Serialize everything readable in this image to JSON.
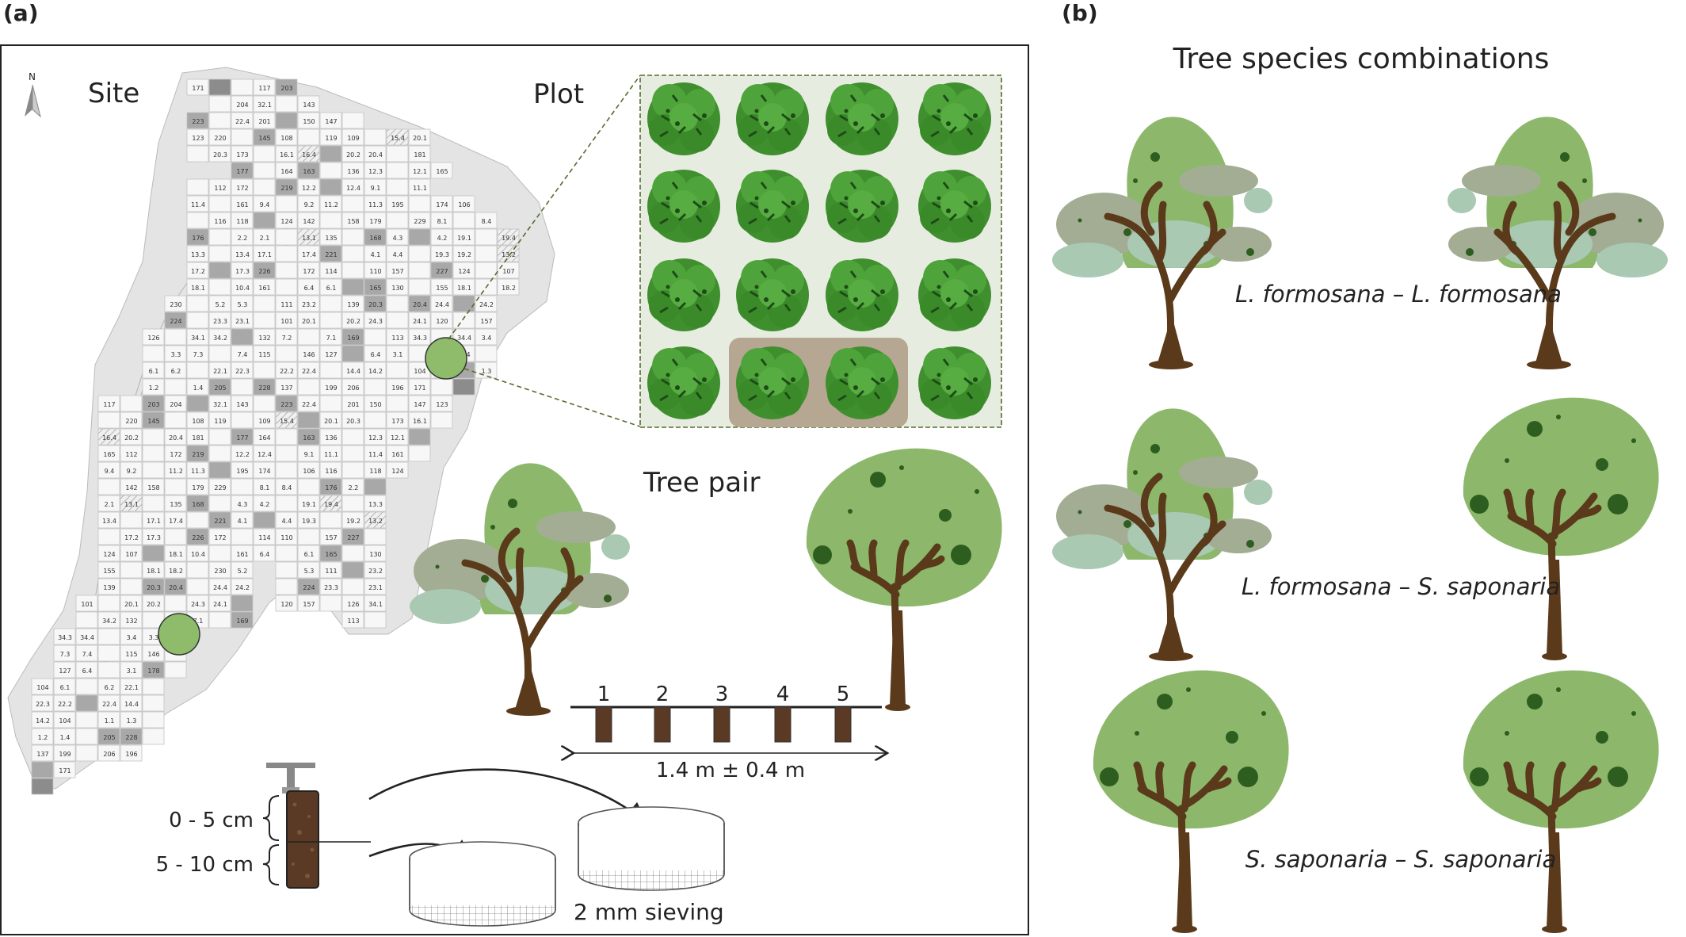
{
  "panel_a": {
    "label": "(a)",
    "north_label": "N",
    "site_label": "Site",
    "plot_label": "Plot",
    "tree_pair_label": "Tree pair",
    "sample_points": [
      "1",
      "2",
      "3",
      "4",
      "5"
    ],
    "distance_label": "1.4 m ± 0.4 m",
    "depth_top": "0 - 5 cm",
    "depth_bottom": "5 - 10 cm",
    "sieve_label": "2 mm sieving",
    "colors": {
      "site_bg": "#e2e2e2",
      "tree_canopy": "#3f8f2f",
      "plot_bg": "#e6ecdf",
      "highlight": "#b5a792",
      "marker": "#8fbc6b"
    },
    "map_cells": [
      {
        "t": "171",
        "s": "l"
      },
      {
        "t": "",
        "s": "d"
      },
      {
        "t": "117",
        "s": "l"
      },
      {
        "t": "203",
        "s": "m"
      },
      {
        "t": "204",
        "s": "l"
      },
      {
        "t": "32.1",
        "s": "l"
      },
      {
        "t": "143",
        "s": "l"
      },
      {
        "t": "223",
        "s": "m"
      },
      {
        "t": "22.4",
        "s": "l"
      },
      {
        "t": "201",
        "s": "l"
      },
      {
        "t": "150",
        "s": "l"
      },
      {
        "t": "147",
        "s": "l"
      },
      {
        "t": "123",
        "s": "l"
      },
      {
        "t": "220",
        "s": "l"
      },
      {
        "t": "145",
        "s": "m"
      },
      {
        "t": "108",
        "s": "l"
      },
      {
        "t": "119",
        "s": "l"
      },
      {
        "t": "109",
        "s": "l"
      },
      {
        "t": "15.4",
        "s": "h"
      },
      {
        "t": "20.1",
        "s": "l"
      },
      {
        "t": "20.3",
        "s": "l"
      },
      {
        "t": "173",
        "s": "l"
      },
      {
        "t": "16.1",
        "s": "l"
      },
      {
        "t": "16.4",
        "s": "h"
      },
      {
        "t": "20.2",
        "s": "l"
      },
      {
        "t": "20.4",
        "s": "l"
      },
      {
        "t": "181",
        "s": "l"
      },
      {
        "t": "177",
        "s": "m"
      },
      {
        "t": "164",
        "s": "l"
      },
      {
        "t": "163",
        "s": "m"
      },
      {
        "t": "136",
        "s": "l"
      },
      {
        "t": "12.3",
        "s": "l"
      },
      {
        "t": "12.1",
        "s": "l"
      },
      {
        "t": "165",
        "s": "l"
      },
      {
        "t": "112",
        "s": "l"
      },
      {
        "t": "172",
        "s": "l"
      },
      {
        "t": "219",
        "s": "m"
      },
      {
        "t": "12.2",
        "s": "l"
      },
      {
        "t": "12.4",
        "s": "l"
      },
      {
        "t": "9.1",
        "s": "l"
      },
      {
        "t": "11.1",
        "s": "l"
      },
      {
        "t": "11.4",
        "s": "l"
      },
      {
        "t": "161",
        "s": "l"
      },
      {
        "t": "9.4",
        "s": "l"
      },
      {
        "t": "9.2",
        "s": "l"
      },
      {
        "t": "11.2",
        "s": "l"
      },
      {
        "t": "11.3",
        "s": "l"
      },
      {
        "t": "195",
        "s": "l"
      },
      {
        "t": "174",
        "s": "l"
      },
      {
        "t": "106",
        "s": "l"
      },
      {
        "t": "116",
        "s": "l"
      },
      {
        "t": "118",
        "s": "l"
      },
      {
        "t": "124",
        "s": "l"
      },
      {
        "t": "142",
        "s": "l"
      },
      {
        "t": "158",
        "s": "l"
      },
      {
        "t": "179",
        "s": "l"
      },
      {
        "t": "229",
        "s": "l"
      },
      {
        "t": "8.1",
        "s": "l"
      },
      {
        "t": "8.4",
        "s": "l"
      },
      {
        "t": "176",
        "s": "m"
      },
      {
        "t": "2.2",
        "s": "l"
      },
      {
        "t": "2.1",
        "s": "l"
      },
      {
        "t": "13.1",
        "s": "h"
      },
      {
        "t": "135",
        "s": "l"
      },
      {
        "t": "168",
        "s": "m"
      },
      {
        "t": "4.3",
        "s": "l"
      },
      {
        "t": "4.2",
        "s": "l"
      },
      {
        "t": "19.1",
        "s": "l"
      },
      {
        "t": "19.4",
        "s": "h"
      },
      {
        "t": "13.3",
        "s": "l"
      },
      {
        "t": "13.4",
        "s": "l"
      },
      {
        "t": "17.1",
        "s": "l"
      },
      {
        "t": "17.4",
        "s": "l"
      },
      {
        "t": "221",
        "s": "m"
      },
      {
        "t": "4.1",
        "s": "l"
      },
      {
        "t": "4.4",
        "s": "l"
      },
      {
        "t": "19.3",
        "s": "l"
      },
      {
        "t": "19.2",
        "s": "l"
      },
      {
        "t": "13.2",
        "s": "h"
      },
      {
        "t": "17.2",
        "s": "l"
      },
      {
        "t": "17.3",
        "s": "l"
      },
      {
        "t": "226",
        "s": "m"
      },
      {
        "t": "172",
        "s": "l"
      },
      {
        "t": "114",
        "s": "l"
      },
      {
        "t": "110",
        "s": "l"
      },
      {
        "t": "157",
        "s": "l"
      },
      {
        "t": "227",
        "s": "m"
      },
      {
        "t": "124",
        "s": "l"
      },
      {
        "t": "107",
        "s": "l"
      },
      {
        "t": "18.1",
        "s": "l"
      },
      {
        "t": "10.4",
        "s": "l"
      },
      {
        "t": "161",
        "s": "l"
      },
      {
        "t": "6.4",
        "s": "l"
      },
      {
        "t": "6.1",
        "s": "l"
      },
      {
        "t": "165",
        "s": "m"
      },
      {
        "t": "130",
        "s": "l"
      },
      {
        "t": "155",
        "s": "l"
      },
      {
        "t": "18.1",
        "s": "l"
      },
      {
        "t": "18.2",
        "s": "l"
      },
      {
        "t": "230",
        "s": "l"
      },
      {
        "t": "5.2",
        "s": "l"
      },
      {
        "t": "5.3",
        "s": "l"
      },
      {
        "t": "111",
        "s": "l"
      },
      {
        "t": "23.2",
        "s": "l"
      },
      {
        "t": "139",
        "s": "l"
      },
      {
        "t": "20.3",
        "s": "m"
      },
      {
        "t": "20.4",
        "s": "m"
      },
      {
        "t": "24.4",
        "s": "l"
      },
      {
        "t": "24.2",
        "s": "l"
      },
      {
        "t": "224",
        "s": "m"
      },
      {
        "t": "23.3",
        "s": "l"
      },
      {
        "t": "23.1",
        "s": "l"
      },
      {
        "t": "101",
        "s": "l"
      },
      {
        "t": "20.1",
        "s": "l"
      },
      {
        "t": "20.2",
        "s": "l"
      },
      {
        "t": "24.3",
        "s": "l"
      },
      {
        "t": "24.1",
        "s": "l"
      },
      {
        "t": "120",
        "s": "l"
      },
      {
        "t": "157",
        "s": "l"
      },
      {
        "t": "126",
        "s": "l"
      },
      {
        "t": "34.1",
        "s": "l"
      },
      {
        "t": "34.2",
        "s": "l"
      },
      {
        "t": "132",
        "s": "l"
      },
      {
        "t": "7.2",
        "s": "l"
      },
      {
        "t": "7.1",
        "s": "l"
      },
      {
        "t": "169",
        "s": "m"
      },
      {
        "t": "113",
        "s": "l"
      },
      {
        "t": "34.3",
        "s": "l"
      },
      {
        "t": "34.4",
        "s": "l"
      },
      {
        "t": "3.4",
        "s": "l"
      },
      {
        "t": "3.3",
        "s": "l"
      },
      {
        "t": "7.3",
        "s": "l"
      },
      {
        "t": "7.4",
        "s": "l"
      },
      {
        "t": "115",
        "s": "l"
      },
      {
        "t": "146",
        "s": "l"
      },
      {
        "t": "127",
        "s": "l"
      },
      {
        "t": "6.4",
        "s": "l"
      },
      {
        "t": "3.1",
        "s": "l"
      },
      {
        "t": "178",
        "s": "m"
      },
      {
        "t": "104",
        "s": "l"
      },
      {
        "t": "6.1",
        "s": "l"
      },
      {
        "t": "6.2",
        "s": "l"
      },
      {
        "t": "22.1",
        "s": "l"
      },
      {
        "t": "22.3",
        "s": "l"
      },
      {
        "t": "22.2",
        "s": "l"
      },
      {
        "t": "22.4",
        "s": "l"
      },
      {
        "t": "14.4",
        "s": "l"
      },
      {
        "t": "14.2",
        "s": "l"
      },
      {
        "t": "104",
        "s": "l"
      },
      {
        "t": "1.1",
        "s": "l"
      },
      {
        "t": "1.3",
        "s": "l"
      },
      {
        "t": "1.2",
        "s": "l"
      },
      {
        "t": "1.4",
        "s": "l"
      },
      {
        "t": "205",
        "s": "m"
      },
      {
        "t": "228",
        "s": "m"
      },
      {
        "t": "137",
        "s": "l"
      },
      {
        "t": "199",
        "s": "l"
      },
      {
        "t": "206",
        "s": "l"
      },
      {
        "t": "196",
        "s": "l"
      }
    ]
  },
  "panel_b": {
    "label": "(b)",
    "title": "Tree species combinations",
    "pairs": [
      {
        "caption": "L. formosana – L. formosana"
      },
      {
        "caption": "L. formosana – S. saponaria"
      },
      {
        "caption": "S. saponaria – S. saponaria"
      }
    ],
    "colors": {
      "canopy": "#8db86c",
      "dot": "#2e5e1f",
      "trunk": "#5a3a1a",
      "leaf_grey": "#a3ad94",
      "leaf_pale": "#a9c9b3"
    }
  }
}
